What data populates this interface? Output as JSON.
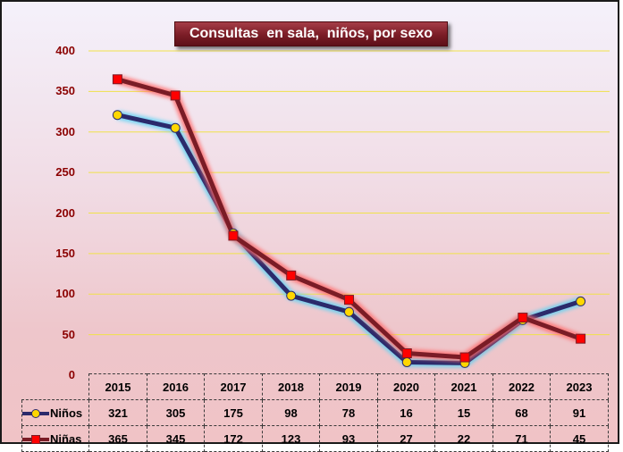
{
  "chart_data": {
    "type": "line",
    "title": "Consultas  en sala,  niños, por sexo",
    "categories": [
      "2015",
      "2016",
      "2017",
      "2018",
      "2019",
      "2020",
      "2021",
      "2022",
      "2023"
    ],
    "series": [
      {
        "name": "Niños",
        "values": [
          321,
          305,
          175,
          98,
          78,
          16,
          15,
          68,
          91
        ],
        "line_color": "#2b2a6b",
        "marker": "circle",
        "marker_color": "#ffd700",
        "glow_color": "#5fd3f5"
      },
      {
        "name": "Niñas",
        "values": [
          365,
          345,
          172,
          123,
          93,
          27,
          22,
          71,
          45
        ],
        "line_color": "#7a1c26",
        "marker": "square",
        "marker_color": "#ff0000",
        "glow_color": "#ff6b6b"
      }
    ],
    "y_ticks": [
      "0",
      "50",
      "100",
      "150",
      "200",
      "250",
      "300",
      "350",
      "400"
    ],
    "ylim": [
      0,
      400
    ],
    "grid": true,
    "legend": "data-table"
  },
  "colors": {
    "axis_text": "#8b0000",
    "grid": "#f0e24a",
    "table_border": "#3a3a3a"
  }
}
